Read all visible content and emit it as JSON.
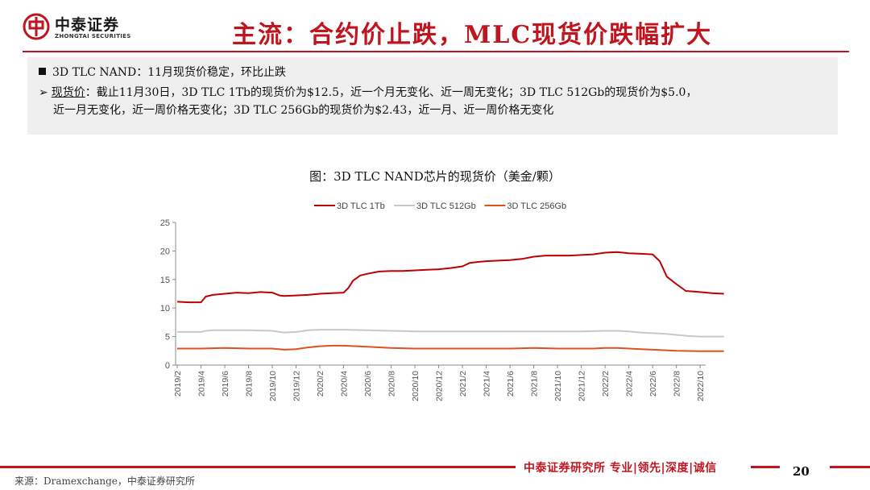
{
  "header": {
    "logo_cn": "中泰证券",
    "logo_en": "ZHONGTAI SECURITIES",
    "title": "主流：合约价止跌，MLC现货价跌幅扩大"
  },
  "summary": {
    "heading": "3D TLC NAND：11月现货价稳定，环比止跌",
    "label": "现货价",
    "line2": "：截止11月30日，3D TLC 1Tb的现货价为$12.5，近一个月无变化、近一周无变化；3D TLC 512Gb的现货价为$5.0，",
    "line3": "近一月无变化，近一周价格无变化；3D TLC 256Gb的现货价为$2.43，近一月、近一周价格无变化"
  },
  "chart_data": {
    "type": "line",
    "title": "图：3D TLC NAND芯片的现货价（美金/颗）",
    "ylim": [
      0,
      25
    ],
    "yticks": [
      0,
      5,
      10,
      15,
      20,
      25
    ],
    "x_labels": [
      "2019/2",
      "2019/4",
      "2019/6",
      "2019/8",
      "2019/10",
      "2019/12",
      "2020/2",
      "2020/4",
      "2020/6",
      "2020/8",
      "2020/10",
      "2020/12",
      "2021/2",
      "2021/4",
      "2021/6",
      "2021/8",
      "2021/10",
      "2021/12",
      "2022/2",
      "2022/4",
      "2022/6",
      "2022/8",
      "2022/10"
    ],
    "legend_position": "top",
    "series": [
      {
        "name": "3D TLC 1Tb",
        "color": "#c00000",
        "points": [
          [
            0,
            11.1
          ],
          [
            0.5,
            11.0
          ],
          [
            1,
            11.0
          ],
          [
            1.2,
            12.0
          ],
          [
            1.5,
            12.3
          ],
          [
            2,
            12.5
          ],
          [
            2.5,
            12.7
          ],
          [
            3,
            12.6
          ],
          [
            3.5,
            12.8
          ],
          [
            4,
            12.7
          ],
          [
            4.3,
            12.2
          ],
          [
            4.5,
            12.1
          ],
          [
            5,
            12.2
          ],
          [
            5.5,
            12.3
          ],
          [
            6,
            12.5
          ],
          [
            6.5,
            12.6
          ],
          [
            7,
            12.7
          ],
          [
            7.2,
            13.5
          ],
          [
            7.4,
            14.8
          ],
          [
            7.7,
            15.7
          ],
          [
            8,
            16.0
          ],
          [
            8.5,
            16.4
          ],
          [
            9,
            16.5
          ],
          [
            9.5,
            16.5
          ],
          [
            10,
            16.6
          ],
          [
            10.5,
            16.7
          ],
          [
            11,
            16.8
          ],
          [
            11.5,
            17.0
          ],
          [
            12,
            17.3
          ],
          [
            12.3,
            17.9
          ],
          [
            12.7,
            18.1
          ],
          [
            13,
            18.2
          ],
          [
            13.5,
            18.3
          ],
          [
            14,
            18.4
          ],
          [
            14.5,
            18.6
          ],
          [
            15,
            19.0
          ],
          [
            15.5,
            19.2
          ],
          [
            16,
            19.2
          ],
          [
            16.5,
            19.2
          ],
          [
            17,
            19.3
          ],
          [
            17.5,
            19.4
          ],
          [
            18,
            19.7
          ],
          [
            18.5,
            19.8
          ],
          [
            19,
            19.6
          ],
          [
            19.5,
            19.5
          ],
          [
            20,
            19.4
          ],
          [
            20.3,
            18.2
          ],
          [
            20.6,
            15.5
          ],
          [
            21,
            14.2
          ],
          [
            21.4,
            13.0
          ],
          [
            22,
            12.8
          ],
          [
            22.5,
            12.6
          ],
          [
            23,
            12.5
          ]
        ]
      },
      {
        "name": "3D TLC 512Gb",
        "color": "#c8c8c8",
        "points": [
          [
            0,
            5.8
          ],
          [
            0.5,
            5.8
          ],
          [
            1,
            5.8
          ],
          [
            1.2,
            6.0
          ],
          [
            1.5,
            6.1
          ],
          [
            2,
            6.1
          ],
          [
            3,
            6.1
          ],
          [
            4,
            6.0
          ],
          [
            4.3,
            5.8
          ],
          [
            4.5,
            5.7
          ],
          [
            5,
            5.8
          ],
          [
            5.5,
            6.1
          ],
          [
            6,
            6.2
          ],
          [
            7,
            6.2
          ],
          [
            8,
            6.1
          ],
          [
            9,
            6.0
          ],
          [
            10,
            5.9
          ],
          [
            11,
            5.9
          ],
          [
            12,
            5.9
          ],
          [
            13,
            5.9
          ],
          [
            14,
            5.9
          ],
          [
            15,
            5.9
          ],
          [
            16,
            5.9
          ],
          [
            17,
            5.9
          ],
          [
            18,
            6.0
          ],
          [
            18.5,
            6.0
          ],
          [
            19,
            5.9
          ],
          [
            19.5,
            5.7
          ],
          [
            20,
            5.6
          ],
          [
            20.5,
            5.5
          ],
          [
            21,
            5.3
          ],
          [
            21.5,
            5.1
          ],
          [
            22,
            5.0
          ],
          [
            23,
            5.0
          ]
        ]
      },
      {
        "name": "3D TLC 256Gb",
        "color": "#e05020",
        "points": [
          [
            0,
            2.9
          ],
          [
            1,
            2.9
          ],
          [
            2,
            3.0
          ],
          [
            3,
            2.9
          ],
          [
            4,
            2.9
          ],
          [
            4.5,
            2.7
          ],
          [
            5,
            2.8
          ],
          [
            5.5,
            3.1
          ],
          [
            6,
            3.3
          ],
          [
            6.5,
            3.4
          ],
          [
            7,
            3.4
          ],
          [
            8,
            3.2
          ],
          [
            9,
            3.0
          ],
          [
            10,
            2.9
          ],
          [
            11,
            2.9
          ],
          [
            12,
            2.9
          ],
          [
            13,
            2.9
          ],
          [
            14,
            2.9
          ],
          [
            15,
            3.0
          ],
          [
            16,
            2.9
          ],
          [
            17,
            2.9
          ],
          [
            17.5,
            2.9
          ],
          [
            18,
            3.0
          ],
          [
            18.5,
            3.0
          ],
          [
            19,
            2.9
          ],
          [
            19.5,
            2.8
          ],
          [
            20,
            2.7
          ],
          [
            21,
            2.5
          ],
          [
            22,
            2.45
          ],
          [
            23,
            2.43
          ]
        ]
      }
    ]
  },
  "footer": {
    "tagline": "中泰证券研究所 专业|领先|深度|诚信",
    "page": "20",
    "source": "来源：Dramexchange，中泰证券研究所"
  }
}
